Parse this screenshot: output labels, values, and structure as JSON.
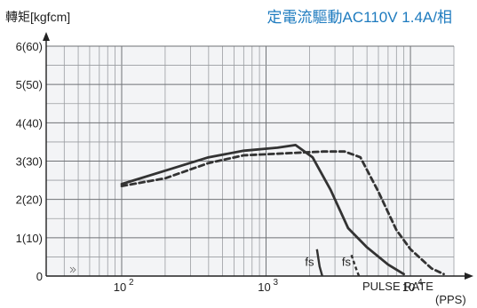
{
  "chart_data": {
    "type": "line",
    "title": "定電流驅動AC110V 1.4A/相",
    "ylabel": "轉矩[kgfcm]",
    "xlabel": "PULSE RATE",
    "xlabel_unit": "(PPS)",
    "x_scale": "log",
    "xlim": [
      30,
      20000
    ],
    "ylim": [
      0,
      6
    ],
    "y_ticks": [
      {
        "value": 0,
        "label": "0"
      },
      {
        "value": 1,
        "label": "1(10)"
      },
      {
        "value": 2,
        "label": "2(20)"
      },
      {
        "value": 3,
        "label": "3(30)"
      },
      {
        "value": 4,
        "label": "4(40)"
      },
      {
        "value": 5,
        "label": "5(50)"
      },
      {
        "value": 6,
        "label": "6(60)"
      }
    ],
    "x_ticks": [
      {
        "value": 100,
        "base": "10",
        "exp": "2"
      },
      {
        "value": 1000,
        "base": "10",
        "exp": "3"
      },
      {
        "value": 10000,
        "base": "10",
        "exp": "4"
      }
    ],
    "grid": true,
    "series": [
      {
        "style": "solid",
        "points": [
          [
            100,
            2.4
          ],
          [
            200,
            2.75
          ],
          [
            400,
            3.1
          ],
          [
            700,
            3.27
          ],
          [
            1200,
            3.35
          ],
          [
            1600,
            3.42
          ],
          [
            2100,
            3.1
          ],
          [
            2800,
            2.25
          ],
          [
            3700,
            1.25
          ],
          [
            5000,
            0.75
          ],
          [
            7000,
            0.3
          ],
          [
            9000,
            0.05
          ]
        ]
      },
      {
        "style": "dashed",
        "points": [
          [
            100,
            2.35
          ],
          [
            200,
            2.55
          ],
          [
            400,
            2.95
          ],
          [
            700,
            3.15
          ],
          [
            1300,
            3.2
          ],
          [
            2500,
            3.25
          ],
          [
            3500,
            3.25
          ],
          [
            4500,
            3.1
          ],
          [
            6000,
            2.2
          ],
          [
            8000,
            1.2
          ],
          [
            10000,
            0.7
          ],
          [
            14000,
            0.2
          ],
          [
            17000,
            0.05
          ]
        ]
      }
    ],
    "annotations": [
      {
        "text": "fs",
        "x": 2000,
        "y": 0.4
      },
      {
        "text": "fs",
        "x": 3600,
        "y": 0.4
      }
    ],
    "fs_marks": [
      {
        "style": "solid",
        "points": [
          [
            2250,
            0.7
          ],
          [
            2350,
            0.25
          ],
          [
            2450,
            0.0
          ]
        ]
      },
      {
        "style": "dashed",
        "points": [
          [
            3900,
            0.55
          ],
          [
            4200,
            0.2
          ],
          [
            4400,
            0.0
          ]
        ]
      }
    ]
  }
}
